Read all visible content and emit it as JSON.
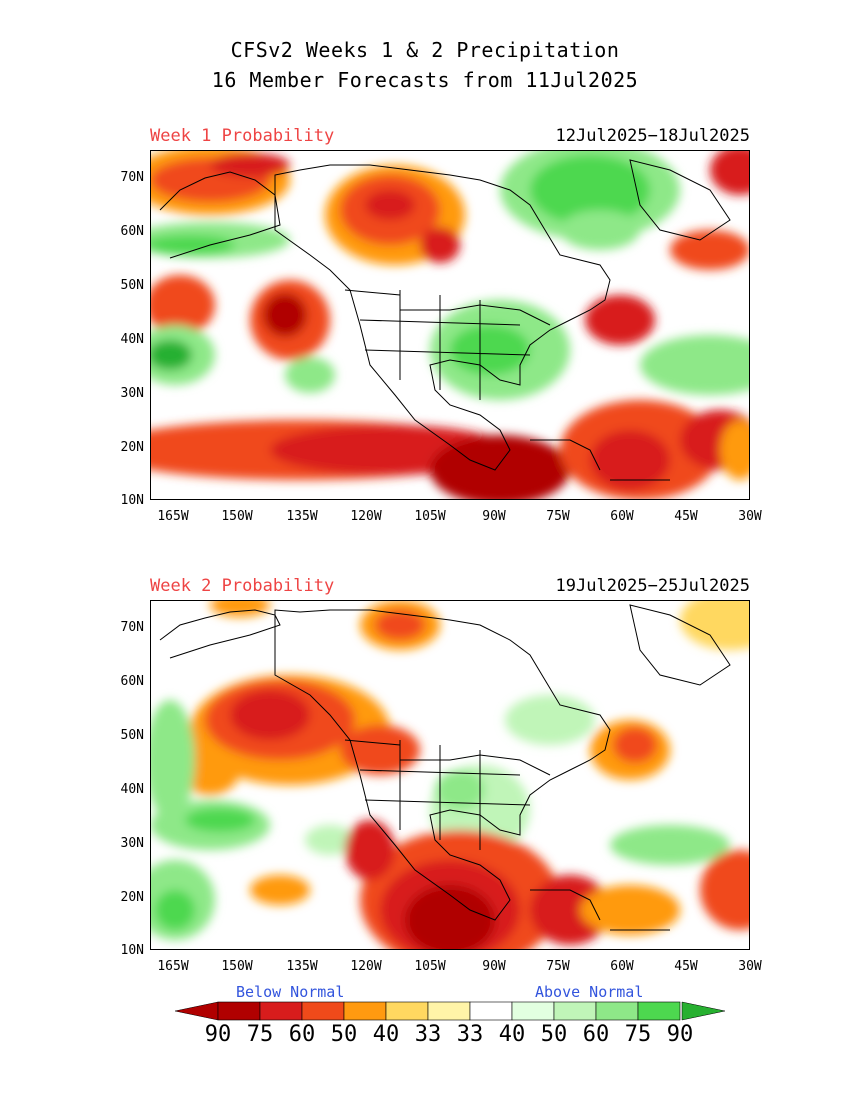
{
  "title": {
    "line1": "CFSv2 Weeks 1 & 2 Precipitation",
    "line2": "16 Member Forecasts from 11Jul2025"
  },
  "panels": [
    {
      "label": "Week 1 Probability",
      "dates": "12Jul2025−18Jul2025"
    },
    {
      "label": "Week 2 Probability",
      "dates": "19Jul2025−25Jul2025"
    }
  ],
  "axes": {
    "lat_labels": [
      "70N",
      "60N",
      "50N",
      "40N",
      "30N",
      "20N",
      "10N"
    ],
    "lon_labels": [
      "165W",
      "150W",
      "135W",
      "120W",
      "105W",
      "90W",
      "75W",
      "60W",
      "45W",
      "30W"
    ]
  },
  "legend": {
    "below_label": "Below Normal",
    "above_label": "Above Normal",
    "numbers": [
      "90",
      "75",
      "60",
      "50",
      "40",
      "33",
      "33",
      "40",
      "50",
      "60",
      "75",
      "90"
    ],
    "colors": [
      "#b00000",
      "#d81c1c",
      "#f04a1a",
      "#ff9a10",
      "#ffd860",
      "#fff4a8",
      "#ffffff",
      "#e2ffe0",
      "#c0f5b8",
      "#8ee888",
      "#4dd84f",
      "#27b030"
    ]
  }
}
